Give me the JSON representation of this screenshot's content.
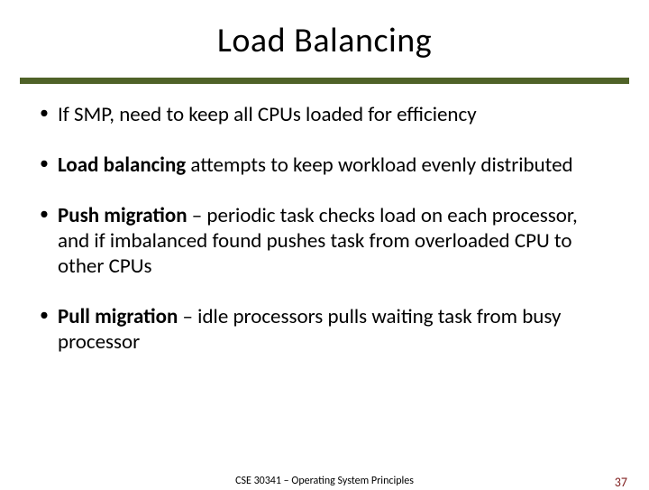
{
  "colors": {
    "rule": "#4f6228",
    "footer_right": "#7f1d1d",
    "text": "#000000",
    "background": "#ffffff"
  },
  "title": "Load Balancing",
  "bullets": [
    {
      "prefix": "",
      "bold": "",
      "rest": "If SMP, need to keep all CPUs loaded for efficiency"
    },
    {
      "prefix": "",
      "bold": "Load balancing",
      "rest": " attempts to keep workload evenly distributed"
    },
    {
      "prefix": "",
      "bold": "Push migration",
      "rest": " – periodic task checks load on each processor, and if imbalanced found pushes task from overloaded CPU to other CPUs"
    },
    {
      "prefix": "",
      "bold": "Pull migration",
      "rest": " – idle processors pulls waiting task from busy processor"
    }
  ],
  "footer": {
    "center": "CSE 30341 – Operating System Principles",
    "page": "37"
  },
  "typography": {
    "title_fontsize": 38,
    "bullet_fontsize": 23,
    "footer_center_fontsize": 12,
    "footer_right_fontsize": 14
  }
}
